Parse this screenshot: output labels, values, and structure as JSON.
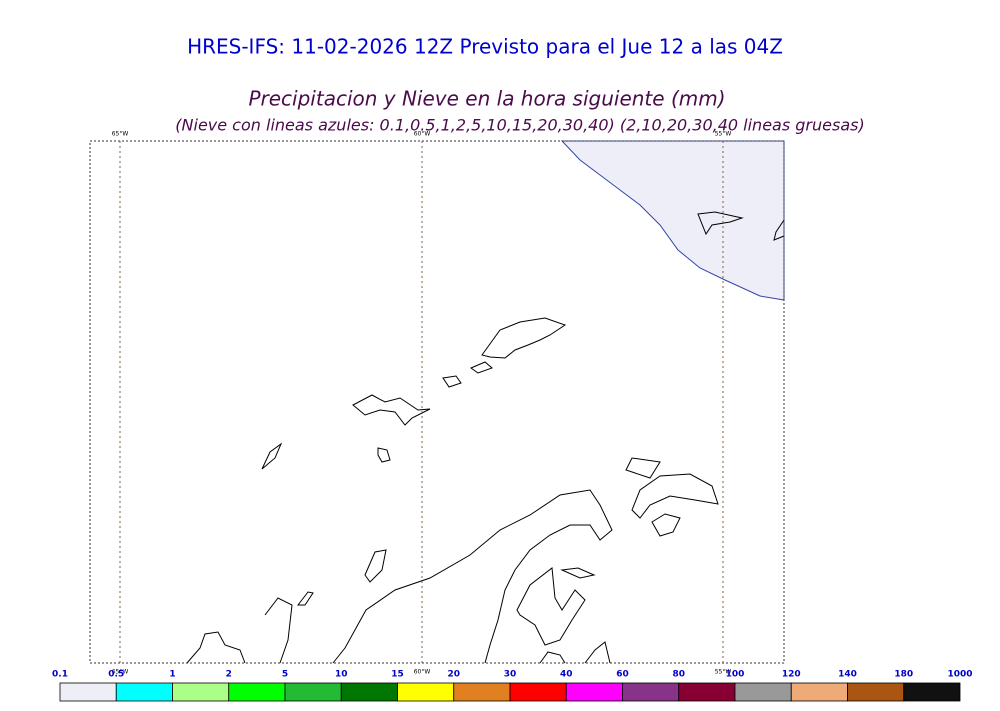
{
  "header": {
    "title": "HRES-IFS: 11-02-2026 12Z Previsto para el Jue 12 a las 04Z",
    "subtitle": "Precipitacion y Nieve en la hora siguiente (mm)",
    "note": "(Nieve con lineas azules: 0.1,0.5,1,2,5,10,15,20,30,40)  (2,10,20,30,40 lineas gruesas)"
  },
  "map": {
    "meridians": [
      "65°W",
      "60°W",
      "55°W"
    ]
  },
  "colorbar": {
    "labels": [
      "0.1",
      "0.5",
      "1",
      "2",
      "5",
      "10",
      "15",
      "20",
      "30",
      "40",
      "60",
      "80",
      "100",
      "120",
      "140",
      "180",
      "1000"
    ],
    "colors": [
      "#eeeef6",
      "#00ffff",
      "#aaff88",
      "#00ff00",
      "#22bb33",
      "#007700",
      "#ffff00",
      "#e08020",
      "#ff0000",
      "#ff00ff",
      "#883388",
      "#880033",
      "#999999",
      "#eeaa77",
      "#aa5511",
      "#111111"
    ]
  }
}
